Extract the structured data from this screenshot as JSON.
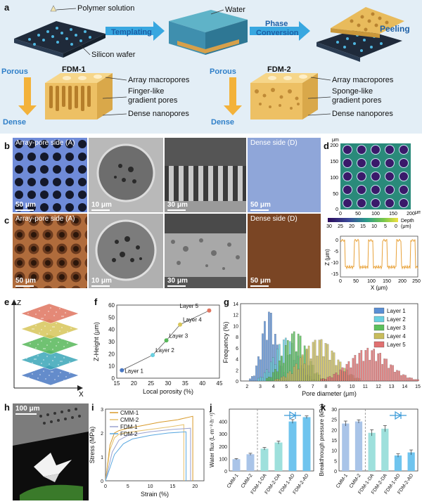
{
  "panel_a": {
    "label": "a",
    "polymer_solution": "Polymer solution",
    "silicon_wafer": "Silicon wafer",
    "water": "Water",
    "templating": "Templating",
    "phase": "Phase",
    "conversion": "Conversion",
    "peeling": "Peeling",
    "fdm1": {
      "title": "FDM-1",
      "porous": "Porous",
      "dense": "Dense",
      "notes": [
        "Array macropores",
        "Finger-like",
        "gradient pores",
        "Dense nanopores"
      ]
    },
    "fdm2": {
      "title": "FDM-2",
      "porous": "Porous",
      "dense": "Dense",
      "notes": [
        "Array macropores",
        "Sponge-like",
        "gradient pores",
        "Dense nanopores"
      ]
    }
  },
  "panel_b": {
    "label": "b",
    "array_side": "Array-pore side (A)",
    "dense_side": "Dense side (D)",
    "scale": [
      "50 μm",
      "10 μm",
      "30 μm",
      "50 μm"
    ]
  },
  "panel_c": {
    "label": "c",
    "array_side": "Array-pore side (A)",
    "dense_side": "Dense side (D)",
    "scale": [
      "50 μm",
      "10 μm",
      "30 μm",
      "50 μm"
    ]
  },
  "panel_d": {
    "label": "d",
    "map_unit": "μm",
    "map_y_ticks": [
      "200",
      "150",
      "100",
      "50",
      "0"
    ],
    "map_x_ticks": [
      "0",
      "50",
      "100",
      "150",
      "200"
    ],
    "colorbar_ticks": [
      "30",
      "25",
      "20",
      "15",
      "10",
      "5",
      "0"
    ],
    "colorbar_label": "Depth",
    "colorbar_unit": "(μm)",
    "profile_ylabel": "Z (μm)",
    "profile_xlabel": "X (μm)",
    "profile_y_ticks": [
      "0",
      "-5",
      "-10",
      "-15"
    ],
    "profile_x_ticks": [
      "0",
      "50",
      "100",
      "150",
      "200",
      "250"
    ],
    "profile_color": "#e8a23a"
  },
  "panel_e": {
    "label": "e",
    "z_axis": "Z",
    "x_axis": "X",
    "layer_colors": [
      "#4a78c2",
      "#3aa6b8",
      "#58b85a",
      "#d8c65a",
      "#e07560"
    ]
  },
  "panel_f": {
    "label": "f",
    "chart_data": {
      "type": "scatter",
      "x": [
        16.5,
        25.5,
        29.5,
        33.5,
        42
      ],
      "y": [
        6.5,
        19,
        31,
        44,
        55.5
      ],
      "point_labels": [
        "Layer 1",
        "Layer 2",
        "Layer 3",
        "Layer 4",
        "Layer 5"
      ],
      "colors": [
        "#4a78c2",
        "#6ad0e0",
        "#58b85a",
        "#d8c65a",
        "#e07560"
      ],
      "xlabel": "Local porosity (%)",
      "ylabel": "Z-Height (μm)",
      "xlim": [
        15,
        45
      ],
      "ylim": [
        0,
        60
      ],
      "x_ticks": [
        "15",
        "20",
        "25",
        "30",
        "35",
        "40",
        "45"
      ],
      "y_ticks": [
        "0",
        "10",
        "20",
        "30",
        "40",
        "50",
        "60"
      ]
    }
  },
  "panel_g": {
    "label": "g",
    "chart_data": {
      "type": "bar",
      "xlabel": "Pore diameter (μm)",
      "ylabel": "Frequency (%)",
      "xlim": [
        1.5,
        15
      ],
      "ylim": [
        0,
        14
      ],
      "x_ticks": [
        "2",
        "3",
        "4",
        "5",
        "6",
        "7",
        "8",
        "9",
        "10",
        "11",
        "12",
        "13",
        "14",
        "15"
      ],
      "y_ticks": [
        "0",
        "2",
        "4",
        "6",
        "8",
        "10",
        "12",
        "14"
      ],
      "series": [
        {
          "name": "Layer 1",
          "color": "#5b8fd4",
          "center": 3.6,
          "sd": 0.55,
          "peak": 13.5
        },
        {
          "name": "Layer 2",
          "color": "#6ad0e0",
          "center": 4.9,
          "sd": 0.9,
          "peak": 8.2
        },
        {
          "name": "Layer 3",
          "color": "#5cc05c",
          "center": 5.6,
          "sd": 0.9,
          "peak": 9.5
        },
        {
          "name": "Layer 4",
          "color": "#c8bc5c",
          "center": 7.4,
          "sd": 1.3,
          "peak": 8.0
        },
        {
          "name": "Layer 5",
          "color": "#e07070",
          "center": 11.2,
          "sd": 1.5,
          "peak": 6.2
        }
      ]
    }
  },
  "panel_h": {
    "label": "h",
    "scale": "100 μm"
  },
  "panel_i": {
    "label": "i",
    "chart_data": {
      "type": "line",
      "xlabel": "Strain (%)",
      "ylabel": "Stress (MPa)",
      "xlim": [
        0,
        22
      ],
      "ylim": [
        0,
        3
      ],
      "x_ticks": [
        "0",
        "5",
        "10",
        "15",
        "20"
      ],
      "y_ticks": [
        "0",
        "1",
        "2",
        "3"
      ],
      "series": [
        {
          "name": "CMM-1",
          "color": "#d89a2a",
          "x": [
            0,
            1,
            2,
            3,
            5,
            8,
            12,
            16,
            19.5,
            19.5
          ],
          "y": [
            0,
            1.5,
            2.0,
            2.1,
            2.2,
            2.3,
            2.45,
            2.55,
            2.7,
            0
          ]
        },
        {
          "name": "CMM-2",
          "color": "#e6c06a",
          "x": [
            0,
            1,
            2,
            3,
            6,
            10,
            14,
            17.5,
            17.5
          ],
          "y": [
            0,
            1.3,
            1.8,
            1.95,
            2.05,
            2.15,
            2.25,
            2.35,
            0
          ]
        },
        {
          "name": "FDM-1",
          "color": "#9aa2d0",
          "x": [
            0,
            1.5,
            3,
            5,
            10,
            15,
            19,
            19
          ],
          "y": [
            0,
            1.2,
            1.7,
            1.9,
            2.05,
            2.15,
            2.2,
            0
          ]
        },
        {
          "name": "FDM-2",
          "color": "#5aa8e0",
          "x": [
            0,
            2,
            4,
            6,
            10,
            14,
            18,
            18
          ],
          "y": [
            0,
            1.1,
            1.55,
            1.75,
            1.9,
            2.0,
            2.05,
            0
          ]
        }
      ]
    }
  },
  "panel_j": {
    "label": "j",
    "chart_data": {
      "type": "bar",
      "ylabel": "Water flux (L·m⁻²·h⁻¹)",
      "categories": [
        "CMM-1",
        "CMM-2",
        "FDM-1-DA",
        "FDM-2-DA",
        "FDM-1-AD",
        "FDM-2-AD"
      ],
      "values": [
        95,
        135,
        180,
        230,
        400,
        435
      ],
      "errors": [
        5,
        8,
        10,
        12,
        15,
        10
      ],
      "colors": [
        "#a9c4e8",
        "#a9c4e8",
        "#9ee0dc",
        "#9ee0dc",
        "#6fc4ee",
        "#6fc4ee"
      ],
      "ylim": [
        0,
        500
      ],
      "y_ticks": [
        "0",
        "100",
        "200",
        "300",
        "400"
      ]
    }
  },
  "panel_k": {
    "label": "k",
    "chart_data": {
      "type": "bar",
      "ylabel": "Breakthrough pressure (kPa)",
      "categories": [
        "CMM-1",
        "CMM-2",
        "FDM-1-DA",
        "FDM-2-DA",
        "FDM-1-AD",
        "FDM-2-AD"
      ],
      "values": [
        23,
        24,
        18.5,
        20.5,
        7.5,
        9
      ],
      "errors": [
        1.2,
        0.8,
        1.5,
        1.5,
        0.8,
        1.2
      ],
      "colors": [
        "#a9c4e8",
        "#a9c4e8",
        "#9ee0dc",
        "#9ee0dc",
        "#6fc4ee",
        "#6fc4ee"
      ],
      "ylim": [
        0,
        30
      ],
      "y_ticks": [
        "0",
        "5",
        "10",
        "15",
        "20",
        "25",
        "30"
      ]
    }
  }
}
